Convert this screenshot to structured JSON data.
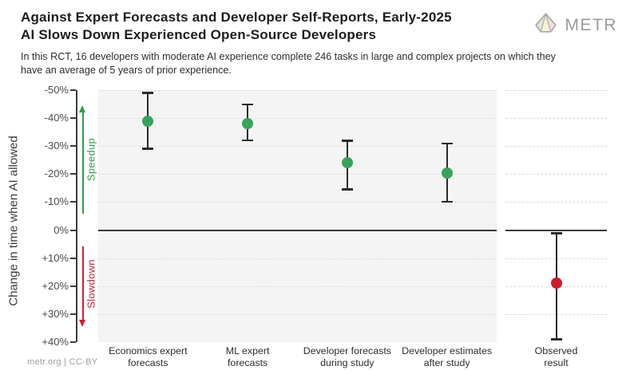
{
  "header": {
    "title_line1": "Against Expert Forecasts and Developer Self-Reports, Early-2025",
    "title_line2": "AI Slows Down Experienced Open-Source Developers",
    "subtitle": "In this RCT, 16 developers with moderate AI experience complete 246 tasks in large and complex projects on which they have an average of 5 years of prior experience.",
    "logo_text": "METR"
  },
  "chart_data": {
    "type": "scatter",
    "title": "Against Expert Forecasts and Developer Self-Reports, Early-2025 AI Slows Down Experienced Open-Source Developers",
    "xlabel": "",
    "ylabel": "Change in time when AI allowed",
    "y_axis": {
      "tick_labels": [
        "-50%",
        "-40%",
        "-30%",
        "-20%",
        "-10%",
        "0%",
        "+10%",
        "+20%",
        "+30%",
        "+40%"
      ],
      "tick_values": [
        -50,
        -40,
        -30,
        -20,
        -10,
        0,
        10,
        20,
        30,
        40
      ],
      "range": [
        -50,
        40
      ],
      "grid": "dashed",
      "gridline_values": [
        -50,
        -40,
        -30,
        -20,
        -10,
        10,
        20,
        30
      ]
    },
    "annotations": {
      "speedup_label": "Speedup",
      "slowdown_label": "Slowdown",
      "speedup_color": "#2ba24b",
      "slowdown_color": "#d01f2e"
    },
    "colors": {
      "forecast_point": "#38a35a",
      "observed_point": "#ce1b28",
      "error_bar": "#2b2b2b",
      "forecast_panel_bg": "#f4f4f4",
      "observed_panel_bg": "#ffffff"
    },
    "series": [
      {
        "label_lines": [
          "Economics expert",
          "forecasts"
        ],
        "value": -39,
        "ci_low": -49,
        "ci_high": -29,
        "panel": "forecasts"
      },
      {
        "label_lines": [
          "ML expert",
          "forecasts"
        ],
        "value": -38,
        "ci_low": -45,
        "ci_high": -32,
        "panel": "forecasts"
      },
      {
        "label_lines": [
          "Developer forecasts",
          "during study"
        ],
        "value": -24,
        "ci_low": -32,
        "ci_high": -14.5,
        "panel": "forecasts"
      },
      {
        "label_lines": [
          "Developer estimates",
          "after study"
        ],
        "value": -20.5,
        "ci_low": -31,
        "ci_high": -10,
        "panel": "forecasts"
      },
      {
        "label_lines": [
          "Observed",
          "result"
        ],
        "value": 19,
        "ci_low": 1,
        "ci_high": 39,
        "panel": "observed"
      }
    ]
  },
  "footer": {
    "credit": "metr.org | CC-BY"
  }
}
